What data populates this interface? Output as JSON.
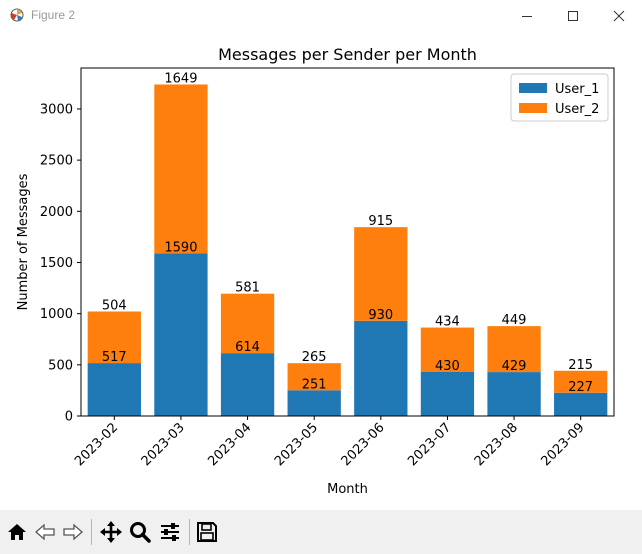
{
  "window": {
    "title": "Figure 2",
    "controls": [
      "minimize",
      "maximize",
      "close"
    ]
  },
  "toolbar": {
    "icons": [
      "home-icon",
      "back-icon",
      "forward-icon",
      "pan-icon",
      "zoom-icon",
      "configure-subplots-icon",
      "save-icon"
    ]
  },
  "colors": {
    "User_1": "#1f77b4",
    "User_2": "#ff7f0e"
  },
  "chart_data": {
    "type": "bar",
    "stacked": true,
    "title": "Messages per Sender per Month",
    "xlabel": "Month",
    "ylabel": "Number of Messages",
    "categories": [
      "2023-02",
      "2023-03",
      "2023-04",
      "2023-05",
      "2023-06",
      "2023-07",
      "2023-08",
      "2023-09"
    ],
    "series": [
      {
        "name": "User_1",
        "values": [
          517,
          1590,
          614,
          251,
          930,
          430,
          429,
          227
        ]
      },
      {
        "name": "User_2",
        "values": [
          504,
          1649,
          581,
          265,
          915,
          434,
          449,
          215
        ]
      }
    ],
    "yticks": [
      "0",
      "500",
      "1000",
      "1500",
      "2000",
      "2500",
      "3000"
    ],
    "ylim": [
      0,
      3400
    ],
    "legend_position": "top-right",
    "grid": false
  }
}
